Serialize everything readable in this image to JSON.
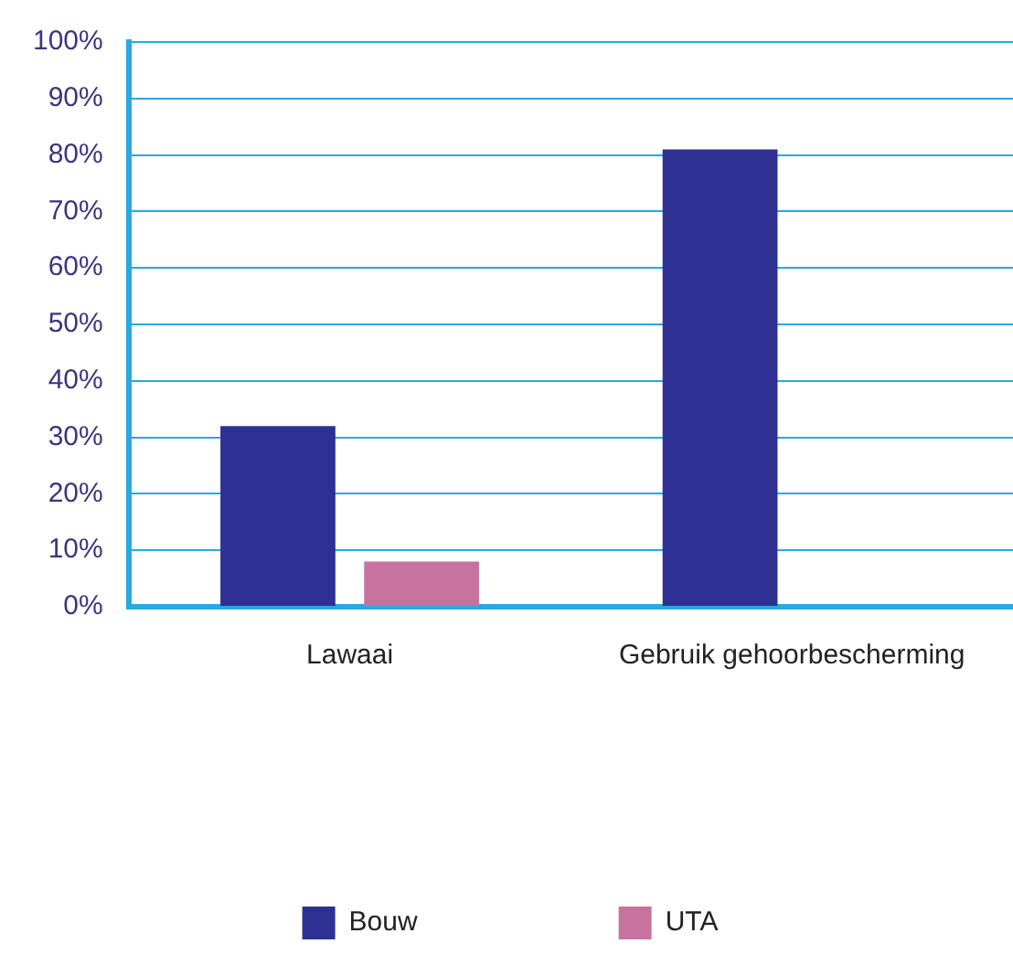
{
  "chart_data": {
    "type": "bar",
    "categories": [
      "Lawaai",
      "Gebruik gehoorbescherming"
    ],
    "series": [
      {
        "name": "Bouw",
        "color": "#2e3192",
        "values": [
          32,
          81
        ]
      },
      {
        "name": "UTA",
        "color": "#c8739f",
        "values": [
          8,
          null
        ]
      }
    ],
    "ylim": [
      0,
      100
    ],
    "yticks": [
      {
        "value": 0,
        "label": "0%"
      },
      {
        "value": 10,
        "label": "10%"
      },
      {
        "value": 20,
        "label": "20%"
      },
      {
        "value": 30,
        "label": "30%"
      },
      {
        "value": 40,
        "label": "40%"
      },
      {
        "value": 50,
        "label": "50%"
      },
      {
        "value": 60,
        "label": "60%"
      },
      {
        "value": 70,
        "label": "70%"
      },
      {
        "value": 80,
        "label": "80%"
      },
      {
        "value": 90,
        "label": "90%"
      },
      {
        "value": 100,
        "label": "100%"
      }
    ],
    "grid": "y",
    "legend": "bottom"
  }
}
